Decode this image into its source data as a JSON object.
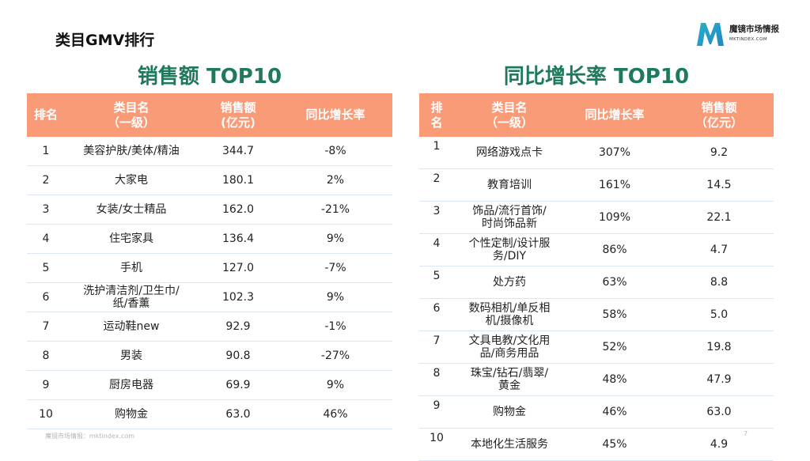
{
  "page_title": "类目GMV排行",
  "logo": {
    "name": "魔镜市场情报",
    "site": "MKTINDEX.COM",
    "icon": "mktindex-logo-icon"
  },
  "left_table": {
    "heading": "销售额 TOP10",
    "headers": [
      "排名",
      "类目名\n（一级）",
      "销售额\n(亿元)",
      "同比增长率"
    ],
    "rows": [
      [
        "1",
        "美容护肤/美体/精油",
        "344.7",
        "-8%"
      ],
      [
        "2",
        "大家电",
        "180.1",
        "2%"
      ],
      [
        "3",
        "女装/女士精品",
        "162.0",
        "-21%"
      ],
      [
        "4",
        "住宅家具",
        "136.4",
        "9%"
      ],
      [
        "5",
        "手机",
        "127.0",
        "-7%"
      ],
      [
        "6",
        "洗护清洁剂/卫生巾/\n纸/香薰",
        "102.3",
        "9%"
      ],
      [
        "7",
        "运动鞋new",
        "92.9",
        "-1%"
      ],
      [
        "8",
        "男装",
        "90.8",
        "-27%"
      ],
      [
        "9",
        "厨房电器",
        "69.9",
        "9%"
      ],
      [
        "10",
        "购物金",
        "63.0",
        "46%"
      ]
    ]
  },
  "right_table": {
    "heading": "同比增长率 TOP10",
    "headers": [
      "排\n名",
      "类目名\n（一级）",
      "同比增长率",
      "销售额\n（亿元）"
    ],
    "rows": [
      [
        "1",
        "网络游戏点卡",
        "307%",
        "9.2"
      ],
      [
        "2",
        "教育培训",
        "161%",
        "14.5"
      ],
      [
        "3",
        "饰品/流行首饰/\n时尚饰品新",
        "109%",
        "22.1"
      ],
      [
        "4",
        "个性定制/设计服\n务/DIY",
        "86%",
        "4.7"
      ],
      [
        "5",
        "处方药",
        "63%",
        "8.8"
      ],
      [
        "6",
        "数码相机/单反相\n机/摄像机",
        "58%",
        "5.0"
      ],
      [
        "7",
        "文具电教/文化用\n品/商务用品",
        "52%",
        "19.8"
      ],
      [
        "8",
        "珠宝/钻石/翡翠/\n黄金",
        "48%",
        "47.9"
      ],
      [
        "9",
        "购物金",
        "46%",
        "63.0"
      ],
      [
        "10",
        "本地化生活服务",
        "45%",
        "4.9"
      ]
    ]
  },
  "footer": "魔镜市场情报：mktindex.com",
  "page_number": "7",
  "colors": {
    "header_bg": "#fa9b78",
    "heading_green": "#1f7a5c",
    "logo_teal": "#2ab0c8"
  }
}
